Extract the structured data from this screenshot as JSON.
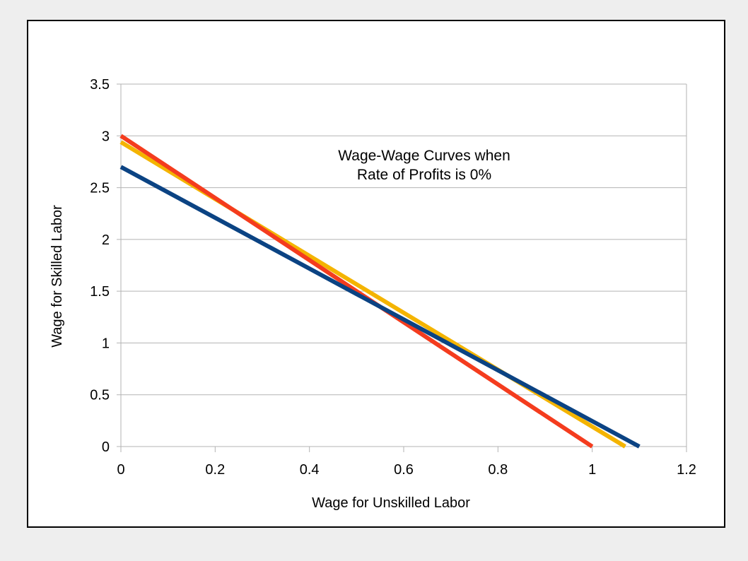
{
  "chart_data": {
    "type": "line",
    "title": "",
    "annotation": [
      "Wage-Wage Curves when",
      "Rate of Profits is 0%"
    ],
    "xlabel": "Wage for Unskilled Labor",
    "ylabel": "Wage for Skilled Labor",
    "xlim": [
      0,
      1.2
    ],
    "ylim": [
      0,
      3.5
    ],
    "xticks": [
      "0",
      "0.2",
      "0.4",
      "0.6",
      "0.8",
      "1",
      "1.2"
    ],
    "yticks": [
      "0",
      "0.5",
      "1",
      "1.5",
      "2",
      "2.5",
      "3",
      "3.5"
    ],
    "grid": "horizontal",
    "legend": "none",
    "series": [
      {
        "color": "#f4b400",
        "x": [
          0,
          1.07
        ],
        "y": [
          2.94,
          0
        ]
      },
      {
        "color": "#f43c1e",
        "x": [
          0,
          1.0
        ],
        "y": [
          3.0,
          0
        ]
      },
      {
        "color": "#0b4383",
        "x": [
          0,
          1.1
        ],
        "y": [
          2.7,
          0
        ]
      }
    ]
  }
}
